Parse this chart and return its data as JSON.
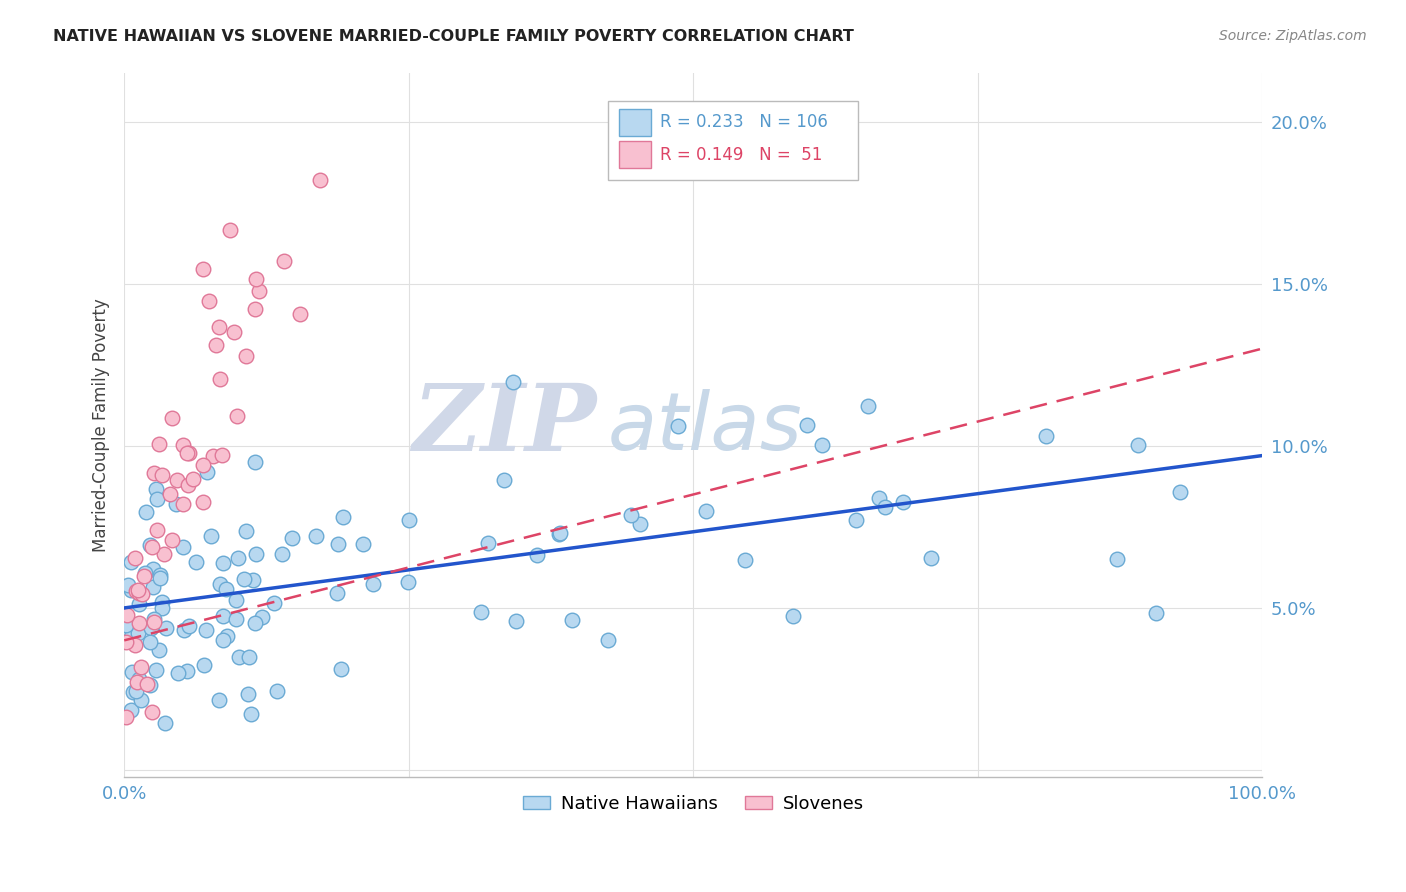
{
  "title": "NATIVE HAWAIIAN VS SLOVENE MARRIED-COUPLE FAMILY POVERTY CORRELATION CHART",
  "source": "Source: ZipAtlas.com",
  "ylabel": "Married-Couple Family Poverty",
  "xlim": [
    0.0,
    1.0
  ],
  "ylim": [
    -0.002,
    0.215
  ],
  "nh_color": "#b8d8f0",
  "nh_edge_color": "#6aaad4",
  "sl_color": "#f8c0d0",
  "sl_edge_color": "#e07898",
  "nh_line_color": "#2255cc",
  "sl_line_color": "#dd4466",
  "watermark_zip": "ZIP",
  "watermark_atlas": "atlas",
  "watermark_zip_color": "#d0d8e8",
  "watermark_atlas_color": "#c8d8e8",
  "legend_R_nh": "0.233",
  "legend_N_nh": "106",
  "legend_R_sl": "0.149",
  "legend_N_sl": " 51",
  "nh_R": 0.233,
  "nh_N": 106,
  "sl_R": 0.149,
  "sl_N": 51,
  "random_seed": 42,
  "background_color": "#ffffff",
  "grid_color": "#e0e0e0",
  "axis_tick_color": "#5599cc",
  "title_color": "#222222",
  "source_color": "#888888",
  "nh_line_x0": 0.0,
  "nh_line_y0": 0.05,
  "nh_line_x1": 1.0,
  "nh_line_y1": 0.097,
  "sl_line_x0": 0.0,
  "sl_line_y0": 0.04,
  "sl_line_x1": 1.0,
  "sl_line_y1": 0.13
}
